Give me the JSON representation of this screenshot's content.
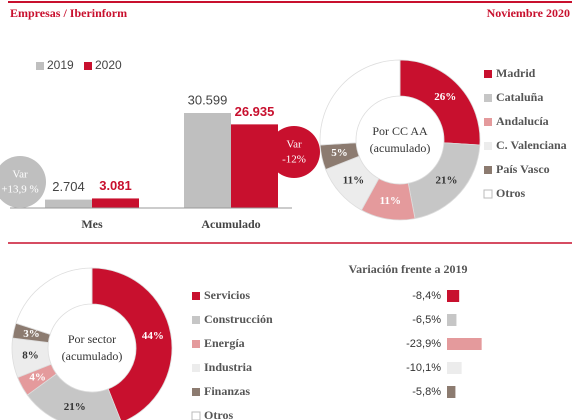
{
  "header": {
    "left": "Empresas / Iberinform",
    "right": "Noviembre 2020"
  },
  "chart_data": [
    {
      "type": "bar",
      "categories": [
        "Mes",
        "Acumulado"
      ],
      "series": [
        {
          "name": "2019",
          "color": "#bfbfbf",
          "values": [
            2704,
            30599
          ],
          "value_labels": [
            "2.704",
            "30.599"
          ]
        },
        {
          "name": "2020",
          "color": "#c8102e",
          "values": [
            3081,
            26935
          ],
          "value_labels": [
            "3.081",
            "26.935"
          ]
        }
      ],
      "annotations": [
        [
          "Var",
          "+13,9 %"
        ],
        [
          "Var",
          "-12%"
        ]
      ]
    },
    {
      "type": "donut",
      "center_label": [
        "Por CC AA",
        "(acumulado)"
      ],
      "categories": [
        "Madrid",
        "Cataluña",
        "Andalucía",
        "C. Valenciana",
        "País Vasco",
        "Otros"
      ],
      "values": [
        26,
        21,
        11,
        11,
        5,
        26
      ],
      "value_labels": [
        "26%",
        "21%",
        "11%",
        "11%",
        "5%",
        null
      ],
      "colors": [
        "#c8102e",
        "#c6c6c6",
        "#e49a9c",
        "#ececec",
        "#8c7b70",
        "#ffffff"
      ]
    },
    {
      "type": "donut",
      "center_label": [
        "Por sector",
        "(acumulado)"
      ],
      "categories": [
        "Servicios",
        "Construcción",
        "Energía",
        "Industria",
        "Finanzas",
        "Otros"
      ],
      "values": [
        44,
        21,
        4,
        8,
        3,
        20
      ],
      "value_labels": [
        "44%",
        "21%",
        "4%",
        "8%",
        "3%",
        null
      ],
      "colors": [
        "#c8102e",
        "#c6c6c6",
        "#e49a9c",
        "#ececec",
        "#8c7b70",
        "#ffffff"
      ]
    },
    {
      "type": "hbar",
      "title": "Variación frente a 2019",
      "values": [
        -8.4,
        -6.5,
        -23.9,
        -10.1,
        -5.8
      ],
      "value_labels": [
        "-8,4%",
        "-6,5%",
        "-23,9%",
        "-10,1%",
        "-5,8%"
      ],
      "colors": [
        "#c8102e",
        "#c6c6c6",
        "#e49a9c",
        "#ececec",
        "#8c7b70"
      ]
    }
  ]
}
